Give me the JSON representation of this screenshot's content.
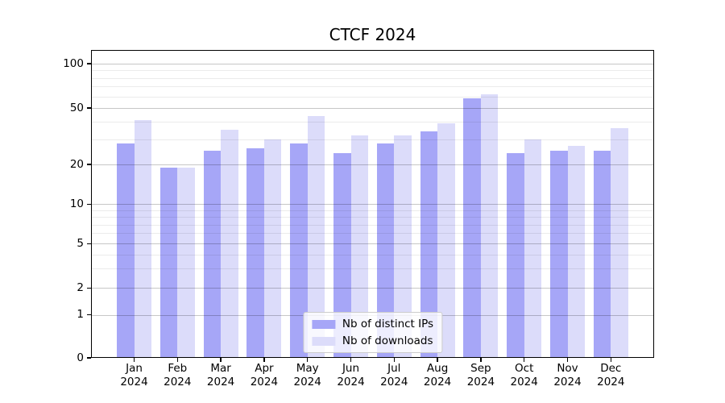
{
  "chart_data": {
    "type": "bar",
    "title": "CTCF 2024",
    "categories": [
      "Jan 2024",
      "Feb 2024",
      "Mar 2024",
      "Apr 2024",
      "May 2024",
      "Jun 2024",
      "Jul 2024",
      "Aug 2024",
      "Sep 2024",
      "Oct 2024",
      "Nov 2024",
      "Dec 2024"
    ],
    "series": [
      {
        "name": "Nb of distinct IPs",
        "color": "#a6a6f7",
        "values": [
          28,
          19,
          25,
          26,
          28,
          24,
          28,
          34,
          58,
          24,
          25,
          25
        ]
      },
      {
        "name": "Nb of downloads",
        "color": "#dcdcfa",
        "values": [
          41,
          19,
          35,
          30,
          44,
          32,
          32,
          39,
          62,
          30,
          27,
          36
        ]
      }
    ],
    "y_axis": {
      "scale": "symlog",
      "major_ticks": [
        0,
        1,
        2,
        5,
        10,
        20,
        50,
        100
      ],
      "minor_ticks": [
        3,
        4,
        6,
        7,
        8,
        9,
        30,
        40,
        60,
        70,
        80,
        90
      ]
    },
    "legend": {
      "location": "lower center",
      "labels": [
        "Nb of distinct IPs",
        "Nb of downloads"
      ]
    },
    "grid": {
      "major": true,
      "minor": true
    },
    "colors": {
      "bar_distinct_ips": "#a6a6f7",
      "bar_downloads": "#dcdcfa",
      "background": "#ffffff",
      "axis": "#000000",
      "grid_major": "rgba(0,0,0,0.22)",
      "grid_minor": "rgba(0,0,0,0.08)"
    }
  }
}
